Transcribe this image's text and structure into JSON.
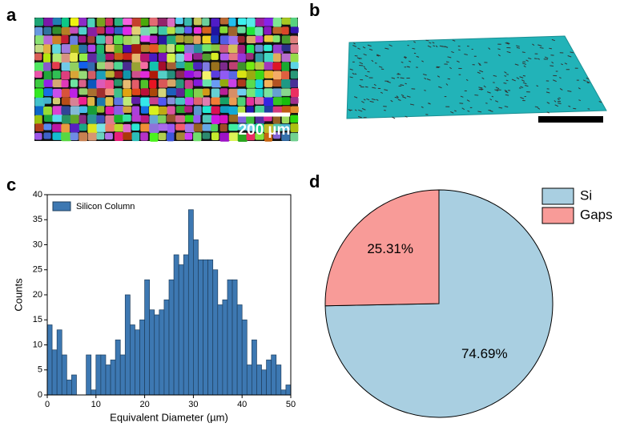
{
  "panel_labels": [
    "a",
    "b",
    "c",
    "d"
  ],
  "scale_bar_label": "200 µm",
  "chart_data": [
    {
      "type": "histogram",
      "xlabel": "Equivalent Diameter (µm)",
      "ylabel": "Counts",
      "bins": [
        0,
        1,
        2,
        3,
        4,
        5,
        6,
        7,
        8,
        9,
        10,
        11,
        12,
        13,
        14,
        15,
        16,
        17,
        18,
        19,
        20,
        21,
        22,
        23,
        24,
        25,
        26,
        27,
        28,
        29,
        30,
        31,
        32,
        33,
        34,
        35,
        36,
        37,
        38,
        39,
        40,
        41,
        42,
        43,
        44,
        45,
        46,
        47,
        48,
        49,
        50
      ],
      "series": [
        {
          "name": "Silicon Column",
          "color": "#3d78b2",
          "values": [
            14,
            9,
            13,
            8,
            3,
            4,
            0,
            0,
            8,
            1,
            8,
            8,
            6,
            7,
            11,
            8,
            20,
            14,
            13,
            15,
            23,
            17,
            16,
            17,
            19,
            23,
            28,
            26,
            28,
            37,
            31,
            27,
            27,
            27,
            25,
            18,
            19,
            23,
            23,
            18,
            15,
            6,
            11,
            6,
            5,
            7,
            8,
            6,
            1,
            2
          ]
        }
      ],
      "xlim": [
        0,
        50
      ],
      "xticks": [
        0,
        10,
        20,
        30,
        40,
        50
      ],
      "ylim": [
        0,
        40
      ],
      "yticks": [
        0,
        5,
        10,
        15,
        20,
        25,
        30,
        35,
        40
      ],
      "legend": "upper left"
    },
    {
      "type": "pie",
      "categories": [
        "Si",
        "Gaps"
      ],
      "values": [
        74.69,
        25.31
      ],
      "value_labels": [
        "74.69%",
        "25.31%"
      ],
      "colors": [
        "#a9cfe1",
        "#f89b98"
      ],
      "legend": "upper right"
    }
  ]
}
